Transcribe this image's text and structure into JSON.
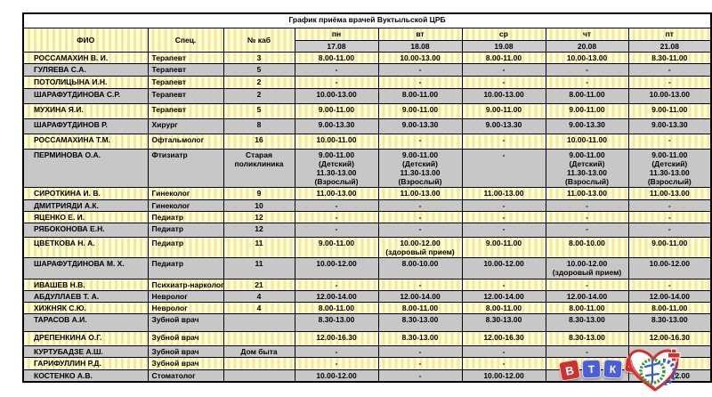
{
  "table": {
    "title": "График приёма врачей Вуктыльской ЦРБ",
    "columns": {
      "fio": "ФИО",
      "spec": "Спец.",
      "kab": "№ каб"
    },
    "days": [
      {
        "label": "пн",
        "date": "17.08"
      },
      {
        "label": "вт",
        "date": "18.08"
      },
      {
        "label": "ср",
        "date": "19.08"
      },
      {
        "label": "чт",
        "date": "20.08"
      },
      {
        "label": "пт",
        "date": "21.08"
      }
    ],
    "rows": [
      {
        "fio": "РОССАМАХИН В. И.",
        "spec": "Терапевт",
        "kab": "3",
        "times": [
          "8.00-11.00",
          "10.00-13.00",
          "8.00-11.00",
          "10.00-13.00",
          "8.30-11.00"
        ]
      },
      {
        "fio": "ГУЛЯЕВА С.А.",
        "spec": "Терапевт",
        "kab": "5",
        "times": [
          "-",
          "-",
          "-",
          "-",
          "-"
        ]
      },
      {
        "fio": "ПОТОЛИЦЫНА И.Н.",
        "spec": "Терапевт",
        "kab": "2",
        "times": [
          "-",
          "-",
          "-",
          "-",
          "-"
        ]
      },
      {
        "fio": "ШАРАФУТДИНОВА С.Р.",
        "spec": "Терапевт",
        "kab": "2",
        "times": [
          "10.00-13.00",
          "8.00-11.00",
          "10.00-13.00",
          "8.00-11.00",
          "10.00-13.00"
        ]
      },
      {
        "fio": "МУХИНА Я.И.",
        "spec": "Терапевт",
        "kab": "5",
        "times": [
          "9.00-11.00",
          "9.00-11.00",
          "9.00-11.00",
          "9.00-11.00",
          "9.00-11.00"
        ]
      },
      {
        "fio": "ШАРАФУТДИНОВ Р.",
        "spec": "Хирург",
        "kab": "8",
        "times": [
          "9.00-13.30",
          "9.00-13.30",
          "9.00-13.30",
          "9.00-13.30",
          "9.00-13.30"
        ]
      },
      {
        "fio": "РОССАМАХИНА Т.М.",
        "spec": "Офтальмолог",
        "kab": "16",
        "times": [
          "10.00-11.00",
          "-",
          "-",
          "10.00-11.00",
          "-"
        ]
      },
      {
        "fio": "ПЕРМИНОВА О.А.",
        "spec": "Фтизиатр",
        "kab": "Старая поликлиника",
        "times": [
          "9.00-11.00\n(Детский)\n11.30-13.00\n(Взрослый)",
          "9.00-11.00\n(Детский)\n11.30-13.00\n(Взрослый)",
          "-",
          "9.00-11.00\n(Детский)\n11.30-13.00\n(Взрослый)",
          "9.00-11.00\n(Детский)\n11.30-13.00\n(Взрослый)"
        ]
      },
      {
        "fio": "СИРОТКИНА И. В.",
        "spec": "Гинеколог",
        "kab": "9",
        "times": [
          "11.00-13.00",
          "11.00-13.00",
          "11.00-13.00",
          "11.00-13.00",
          "11.00-13.00"
        ]
      },
      {
        "fio": "ДМИТРИЯДИ А.К.",
        "spec": "Гинеколог",
        "kab": "10",
        "times": [
          "-",
          "-",
          "-",
          "-",
          "-"
        ]
      },
      {
        "fio": "ЯЦЕНКО Е. И.",
        "spec": "Педиатр",
        "kab": "12",
        "times": [
          "-",
          "-",
          "-",
          "-",
          "-"
        ]
      },
      {
        "fio": "РЯБОКОНОВА Е.Н.",
        "spec": "Педиатр",
        "kab": "12",
        "times": [
          "-",
          "-",
          "-",
          "-",
          "-"
        ]
      },
      {
        "fio": "ЦВЕТКОВА Н. А.",
        "spec": "Педиатр",
        "kab": "11",
        "times": [
          "9.00-11.00",
          "10.00-12.00\n(здоровый прием)",
          "9.00-11.00",
          "8.00-10.00",
          "9.00-11.00"
        ]
      },
      {
        "fio": "ШАРАФУТДИНОВА М. Х.",
        "spec": "Педиатр",
        "kab": "11",
        "times": [
          "10.00-12.00",
          "8.00-10.00",
          "10.00-12.00",
          "10.00-12.00\n(здоровый прием)",
          "10.00-12.00"
        ]
      },
      {
        "fio": "ИВАШЕВ Н.В.",
        "spec": "Психиатр-нарколог",
        "kab": "21",
        "times": [
          "-",
          "-",
          "-",
          "-",
          "-"
        ]
      },
      {
        "fio": "АБДУЛЛАЕВ Т. А.",
        "spec": "Невролог",
        "kab": "4",
        "times": [
          "12.00-14.00",
          "12.00-14.00",
          "12.00-14.00",
          "12.00-14.00",
          "12.00-14.00"
        ]
      },
      {
        "fio": "ХИЖНЯК С.Ю.",
        "spec": "Невролог",
        "kab": "4",
        "times": [
          "8.00-11.00",
          "8.00-11.00",
          "8.00-11.00",
          "8.00-11.00",
          "8.00-11.00"
        ]
      },
      {
        "fio": "ТАРАСОВ А.И.",
        "spec": "Зубной врач",
        "kab": "",
        "times": [
          "8.30-13.00",
          "8.30-13.00",
          "8.30-13.00",
          "8.30-13.00",
          "8.30-13.00"
        ]
      },
      {
        "fio": "ДРЕПЕНКИНА О.Г.",
        "spec": "Зубной врач",
        "kab": "",
        "times": [
          "12.00-16.30",
          "8.30-13.00",
          "12.00-16.30",
          "8.30-13.00",
          "12.00-16.30"
        ]
      },
      {
        "fio": "КУРТУБАДЗЕ А.Ш.",
        "spec": "Зубной врач",
        "kab": "Дом быта",
        "times": [
          "-",
          "-",
          "-",
          "-",
          "-"
        ]
      },
      {
        "fio": "ГАРИФУЛЛИН Р.Д.",
        "spec": "Зубной врач",
        "kab": "",
        "times": [
          "-",
          "-",
          "-",
          "-",
          "-"
        ]
      },
      {
        "fio": "КОСТЕНКО А.В.",
        "spec": "Стоматолог",
        "kab": "",
        "times": [
          "10.00-12.00",
          "-",
          "10.00-12.00",
          "-",
          "10.00-12.00"
        ]
      }
    ]
  },
  "logos": {
    "vtk_tiles": [
      "В",
      "Т",
      "К",
      "24"
    ]
  },
  "colors": {
    "row_yellow": "#FFFDD4",
    "row_gray": "#C7C7C7",
    "date_gray": "#CDCDCD",
    "logo_red": "#C9332E",
    "logo_blue": "#4A5FD6",
    "logo_green": "#379A3C"
  }
}
